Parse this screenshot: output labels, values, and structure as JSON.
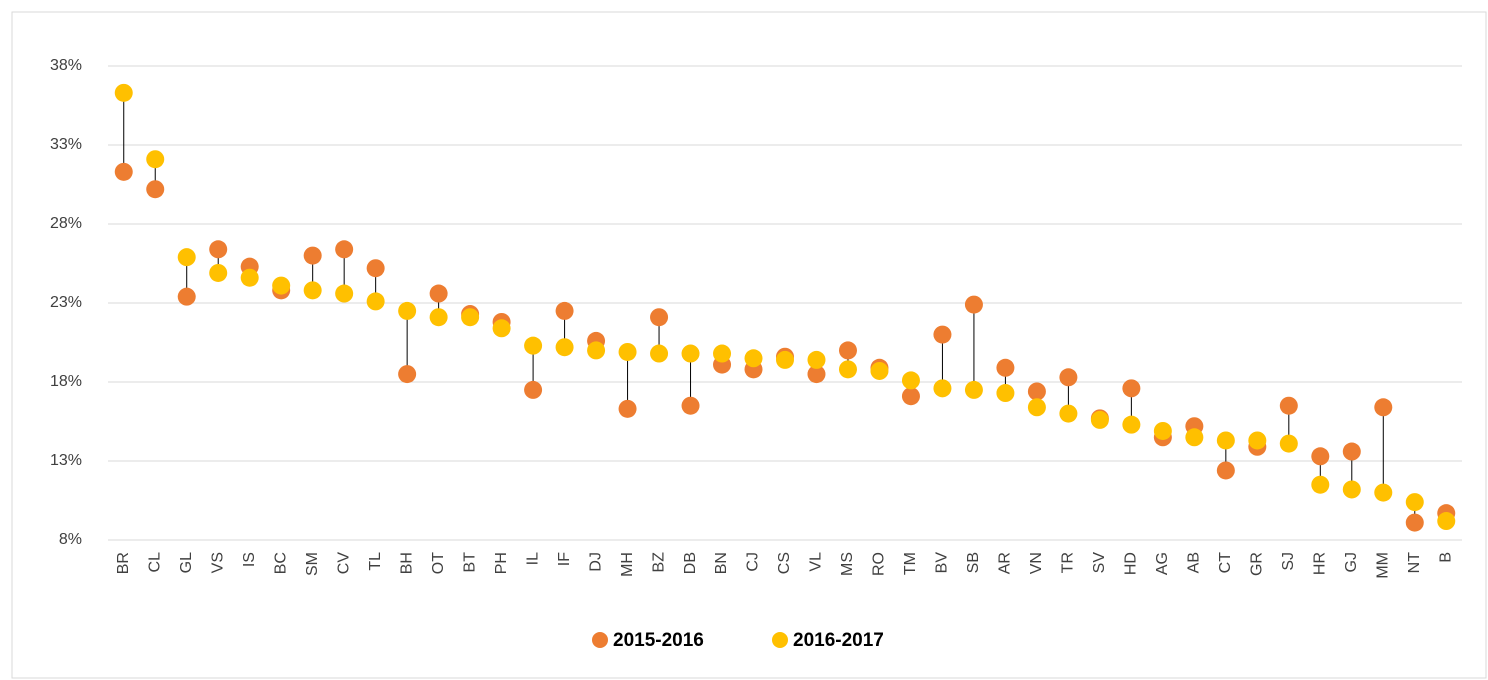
{
  "chart_data": {
    "type": "dumbbell",
    "categories": [
      "BR",
      "CL",
      "GL",
      "VS",
      "IS",
      "BC",
      "SM",
      "CV",
      "TL",
      "BH",
      "OT",
      "BT",
      "PH",
      "IL",
      "IF",
      "DJ",
      "MH",
      "BZ",
      "DB",
      "BN",
      "CJ",
      "CS",
      "VL",
      "MS",
      "RO",
      "TM",
      "BV",
      "SB",
      "AR",
      "VN",
      "TR",
      "SV",
      "HD",
      "AG",
      "AB",
      "CT",
      "GR",
      "SJ",
      "HR",
      "GJ",
      "MM",
      "NT",
      "B"
    ],
    "series": [
      {
        "name": "2015-2016",
        "color": "#ED7D31",
        "values": [
          31.3,
          30.2,
          23.4,
          26.4,
          25.3,
          23.8,
          26.0,
          26.4,
          25.2,
          18.5,
          23.6,
          22.3,
          21.8,
          17.5,
          22.5,
          20.6,
          16.3,
          22.1,
          16.5,
          19.1,
          18.8,
          19.6,
          18.5,
          20.0,
          18.9,
          17.1,
          21.0,
          22.9,
          18.9,
          17.4,
          18.3,
          15.7,
          17.6,
          14.5,
          15.2,
          12.4,
          13.9,
          16.5,
          13.3,
          13.6,
          16.4,
          9.1,
          9.7
        ]
      },
      {
        "name": "2016-2017",
        "color": "#FFC000",
        "values": [
          36.3,
          32.1,
          25.9,
          24.9,
          24.6,
          24.1,
          23.8,
          23.6,
          23.1,
          22.5,
          22.1,
          22.1,
          21.4,
          20.3,
          20.2,
          20.0,
          19.9,
          19.8,
          19.8,
          19.8,
          19.5,
          19.4,
          19.4,
          18.8,
          18.7,
          18.1,
          17.6,
          17.5,
          17.3,
          16.4,
          16.0,
          15.6,
          15.3,
          14.9,
          14.5,
          14.3,
          14.3,
          14.1,
          11.5,
          11.2,
          11.0,
          10.4,
          9.2
        ]
      }
    ],
    "ylim": [
      8,
      38
    ],
    "yticks": [
      {
        "value": 8,
        "label": "8%"
      },
      {
        "value": 13,
        "label": "13%"
      },
      {
        "value": 18,
        "label": "18%"
      },
      {
        "value": 23,
        "label": "23%"
      },
      {
        "value": 28,
        "label": "28%"
      },
      {
        "value": 33,
        "label": "33%"
      },
      {
        "value": 38,
        "label": "38%"
      }
    ],
    "grid": true,
    "legend": "bottom"
  }
}
